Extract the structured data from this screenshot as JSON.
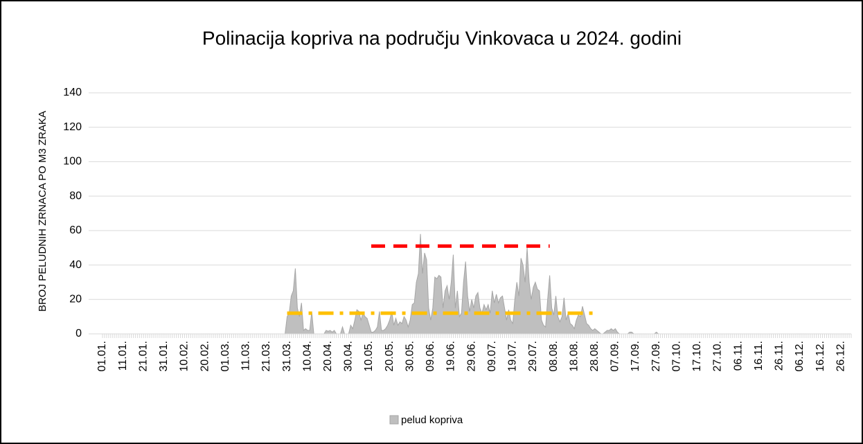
{
  "chart_data": {
    "type": "area",
    "title": "Polinacija kopriva na području Vinkovaca u 2024. godini",
    "y_label": "BROJ PELUDNIH ZRNACA PO M3 ZRAKA",
    "ylim": [
      0,
      140
    ],
    "yticks": [
      0,
      20,
      40,
      60,
      80,
      100,
      120,
      140
    ],
    "grid": true,
    "legend": "bottom",
    "categories": [
      "01.01.",
      null,
      null,
      null,
      null,
      null,
      null,
      null,
      null,
      null,
      "11.01.",
      null,
      null,
      null,
      null,
      null,
      null,
      null,
      null,
      null,
      "21.01.",
      null,
      null,
      null,
      null,
      null,
      null,
      null,
      null,
      null,
      "31.01.",
      null,
      null,
      null,
      null,
      null,
      null,
      null,
      null,
      null,
      "10.02.",
      null,
      null,
      null,
      null,
      null,
      null,
      null,
      null,
      null,
      "20.02.",
      null,
      null,
      null,
      null,
      null,
      null,
      null,
      null,
      null,
      "01.03.",
      null,
      null,
      null,
      null,
      null,
      null,
      null,
      null,
      null,
      "11.03.",
      null,
      null,
      null,
      null,
      null,
      null,
      null,
      null,
      null,
      "21.03.",
      null,
      null,
      null,
      null,
      null,
      null,
      null,
      null,
      null,
      "31.03.",
      null,
      null,
      null,
      null,
      null,
      null,
      null,
      null,
      null,
      "10.04.",
      null,
      null,
      null,
      null,
      null,
      null,
      null,
      null,
      null,
      "20.04.",
      null,
      null,
      null,
      null,
      null,
      null,
      null,
      null,
      null,
      "30.04.",
      null,
      null,
      null,
      null,
      null,
      null,
      null,
      null,
      null,
      "10.05.",
      null,
      null,
      null,
      null,
      null,
      null,
      null,
      null,
      null,
      "20.05.",
      null,
      null,
      null,
      null,
      null,
      null,
      null,
      null,
      null,
      "30.05.",
      null,
      null,
      null,
      null,
      null,
      null,
      null,
      null,
      null,
      "09.06.",
      null,
      null,
      null,
      null,
      null,
      null,
      null,
      null,
      null,
      "19.06.",
      null,
      null,
      null,
      null,
      null,
      null,
      null,
      null,
      null,
      "29.06.",
      null,
      null,
      null,
      null,
      null,
      null,
      null,
      null,
      null,
      "09.07.",
      null,
      null,
      null,
      null,
      null,
      null,
      null,
      null,
      null,
      "19.07.",
      null,
      null,
      null,
      null,
      null,
      null,
      null,
      null,
      null,
      "29.07.",
      null,
      null,
      null,
      null,
      null,
      null,
      null,
      null,
      null,
      "08.08.",
      null,
      null,
      null,
      null,
      null,
      null,
      null,
      null,
      null,
      "18.08.",
      null,
      null,
      null,
      null,
      null,
      null,
      null,
      null,
      null,
      "28.08.",
      null,
      null,
      null,
      null,
      null,
      null,
      null,
      null,
      null,
      "07.09.",
      null,
      null,
      null,
      null,
      null,
      null,
      null,
      null,
      null,
      "17.09.",
      null,
      null,
      null,
      null,
      null,
      null,
      null,
      null,
      null,
      "27.09.",
      null,
      null,
      null,
      null,
      null,
      null,
      null,
      null,
      null,
      "07.10.",
      null,
      null,
      null,
      null,
      null,
      null,
      null,
      null,
      null,
      "17.10.",
      null,
      null,
      null,
      null,
      null,
      null,
      null,
      null,
      null,
      "27.10.",
      null,
      null,
      null,
      null,
      null,
      null,
      null,
      null,
      null,
      "06.11.",
      null,
      null,
      null,
      null,
      null,
      null,
      null,
      null,
      null,
      "16.11.",
      null,
      null,
      null,
      null,
      null,
      null,
      null,
      null,
      null,
      "26.11.",
      null,
      null,
      null,
      null,
      null,
      null,
      null,
      null,
      null,
      "06.12.",
      null,
      null,
      null,
      null,
      null,
      null,
      null,
      null,
      null,
      "16.12.",
      null,
      null,
      null,
      null,
      null,
      null,
      null,
      null,
      null,
      "26.12.",
      null,
      null,
      null,
      null,
      null
    ],
    "series": [
      {
        "name": "pelud kopriva",
        "color": "#bfbfbf",
        "stroke": "#a6a6a6",
        "values": [
          0,
          0,
          0,
          0,
          0,
          0,
          0,
          0,
          0,
          0,
          0,
          0,
          0,
          0,
          0,
          0,
          0,
          0,
          0,
          0,
          0,
          0,
          0,
          0,
          0,
          0,
          0,
          0,
          0,
          0,
          0,
          0,
          0,
          0,
          0,
          0,
          0,
          0,
          0,
          0,
          0,
          0,
          0,
          0,
          0,
          0,
          0,
          0,
          0,
          0,
          0,
          0,
          0,
          0,
          0,
          0,
          0,
          0,
          0,
          0,
          0,
          0,
          0,
          0,
          0,
          0,
          0,
          0,
          0,
          0,
          0,
          0,
          0,
          0,
          0,
          0,
          0,
          0,
          0,
          0,
          0,
          0,
          0,
          0,
          0,
          0,
          0,
          0,
          0,
          0,
          10,
          12,
          22,
          25,
          38,
          15,
          10,
          18,
          2,
          3,
          2,
          2,
          13,
          0,
          0,
          0,
          0,
          0,
          0,
          2,
          1.5,
          2,
          1,
          2,
          0,
          0,
          0,
          4,
          0,
          0,
          0,
          5,
          3,
          8,
          14,
          13,
          8,
          12,
          10,
          9,
          5,
          1,
          1,
          2,
          4,
          13,
          2,
          2,
          3,
          5,
          8,
          13,
          5,
          9,
          5,
          7,
          6,
          10,
          8,
          4,
          8,
          17,
          18,
          30,
          35,
          58,
          35,
          47,
          43,
          15,
          8,
          15,
          33,
          32,
          34,
          33,
          15,
          25,
          28,
          20,
          30,
          46,
          15,
          25,
          10,
          12,
          30,
          42,
          22,
          13,
          20,
          15,
          22,
          24,
          15,
          12,
          17,
          14,
          17,
          12,
          25,
          18,
          23,
          18,
          21,
          22,
          15,
          8,
          14,
          8,
          6,
          20,
          30,
          22,
          44,
          40,
          30,
          50,
          30,
          20,
          27,
          30,
          26,
          25,
          8,
          5,
          4,
          20,
          34,
          15,
          11,
          22,
          10,
          7,
          10,
          21,
          8,
          12,
          6,
          5,
          3,
          8,
          11,
          10,
          16,
          11,
          6,
          5,
          3,
          2,
          3,
          2,
          1,
          0,
          0,
          1,
          2,
          2,
          3,
          2,
          3,
          1,
          0,
          0,
          0,
          0,
          0,
          1,
          1,
          0,
          0,
          0,
          0,
          0,
          0,
          0,
          0,
          0,
          0,
          0,
          1,
          0,
          0,
          0,
          0,
          0,
          0,
          0,
          0,
          0,
          0,
          0,
          0,
          0,
          0,
          0,
          0,
          0,
          0,
          0,
          0,
          0,
          0,
          0,
          0,
          0,
          0,
          0,
          0,
          0,
          0,
          0,
          0,
          0,
          0,
          0,
          0,
          0,
          0,
          0,
          0,
          0,
          0,
          0,
          0,
          0,
          0,
          0,
          0,
          0,
          0,
          0,
          0,
          0,
          0,
          0,
          0,
          0,
          0,
          0,
          0,
          0,
          0,
          0,
          0,
          0,
          0,
          0,
          0,
          0,
          0,
          0,
          0,
          0,
          0,
          0,
          0,
          0,
          0,
          0,
          0,
          0,
          0,
          0,
          0,
          0,
          0,
          0,
          0,
          0,
          0,
          0,
          0,
          0,
          0,
          0
        ]
      }
    ],
    "reference_lines": [
      {
        "value": 51,
        "from": 131,
        "to": 218,
        "color": "#ff0000",
        "style": "dash"
      },
      {
        "value": 12,
        "from": 90,
        "to": 239,
        "color": "#ffc000",
        "style": "dash-dot"
      }
    ]
  }
}
